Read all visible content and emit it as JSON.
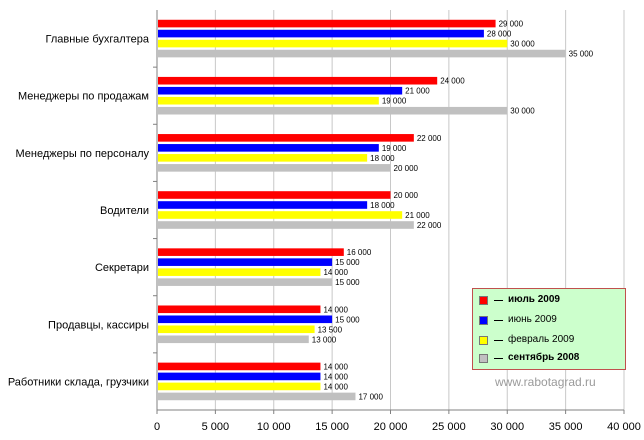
{
  "chart_data": {
    "type": "bar",
    "orientation": "horizontal",
    "title": "",
    "xlabel": "",
    "ylabel": "",
    "xlim": [
      0,
      40000
    ],
    "x_ticks": [
      {
        "value": 0,
        "label": "0"
      },
      {
        "value": 5000,
        "label": "5 000"
      },
      {
        "value": 10000,
        "label": "10 000"
      },
      {
        "value": 15000,
        "label": "15 000"
      },
      {
        "value": 20000,
        "label": "20 000"
      },
      {
        "value": 25000,
        "label": "25 000"
      },
      {
        "value": 30000,
        "label": "30 000"
      },
      {
        "value": 35000,
        "label": "35 000"
      },
      {
        "value": 40000,
        "label": "40 000"
      }
    ],
    "grid": "vertical",
    "categories": [
      "Главные бухгалтера",
      "Менеджеры по продажам",
      "Менеджеры по персоналу",
      "Водители",
      "Секретари",
      "Продавцы, кассиры",
      "Работники склада, грузчики"
    ],
    "series": [
      {
        "name": "июль 2009",
        "color": "#ff0000",
        "label_color": "#000000",
        "legend_bold": true,
        "values": [
          29000,
          24000,
          22000,
          20000,
          16000,
          14000,
          14000
        ],
        "labels": [
          "29 000",
          "24 000",
          "22 000",
          "20 000",
          "16 000",
          "14 000",
          "14 000"
        ]
      },
      {
        "name": "июнь 2009",
        "color": "#0000ff",
        "label_color": "#1a1ab4",
        "legend_bold": false,
        "values": [
          28000,
          21000,
          19000,
          18000,
          15000,
          15000,
          14000
        ],
        "labels": [
          "28 000",
          "21 000",
          "19 000",
          "18 000",
          "15 000",
          "15 000",
          "14 000"
        ]
      },
      {
        "name": "февраль 2009",
        "color": "#ffff00",
        "label_color": "#000000",
        "legend_bold": false,
        "values": [
          30000,
          19000,
          18000,
          21000,
          14000,
          13500,
          14000
        ],
        "labels": [
          "30 000",
          "19 000",
          "18 000",
          "21 000",
          "14 000",
          "13 500",
          "14 000"
        ]
      },
      {
        "name": "сентябрь 2008",
        "color": "#c0c0c0",
        "label_color": "#1a1ab4",
        "legend_bold": true,
        "values": [
          35000,
          30000,
          20000,
          22000,
          15000,
          13000,
          17000
        ],
        "labels": [
          "35 000",
          "30 000",
          "20 000",
          "22 000",
          "15 000",
          "13 000",
          "17 000"
        ]
      }
    ],
    "legend_position": "bottom-right",
    "watermark": "www.rabotagrad.ru"
  }
}
